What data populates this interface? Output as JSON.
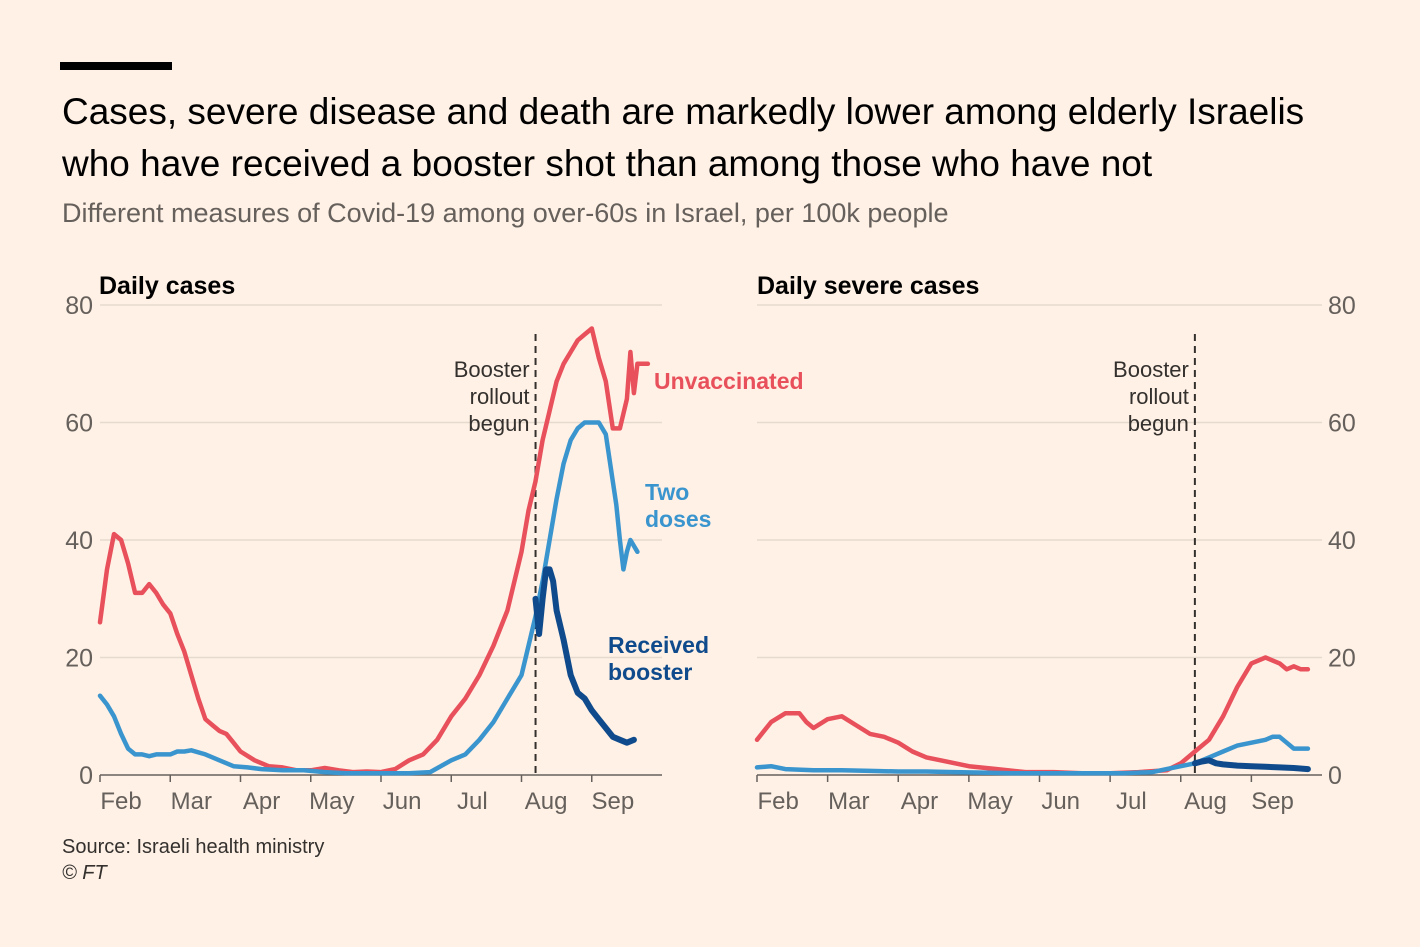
{
  "header": {
    "title": "Cases, severe disease and death are markedly lower among elderly Israelis who have received a booster shot than among those who have not",
    "subtitle": "Different measures of Covid-19 among over-60s in Israel, per 100k people"
  },
  "footer": {
    "source": "Source: Israeli health ministry",
    "copyright": "© FT"
  },
  "colors": {
    "unvaccinated": "#e8505b",
    "two_doses": "#3a95cf",
    "received_booster": "#0f4b8c",
    "grid": "#e6d9ce",
    "axis": "#66605c",
    "booster_line": "#33302e"
  },
  "chart_data": [
    {
      "type": "line",
      "title": "Daily cases",
      "ylim": [
        0,
        80
      ],
      "yticks": [
        "0",
        "20",
        "40",
        "60",
        "80"
      ],
      "x_range": [
        0,
        8
      ],
      "x_ticks": [
        {
          "label": "Feb",
          "x": 0.3
        },
        {
          "label": "Mar",
          "x": 1.3
        },
        {
          "label": "Apr",
          "x": 2.3
        },
        {
          "label": "May",
          "x": 3.3
        },
        {
          "label": "Jun",
          "x": 4.3
        },
        {
          "label": "Jul",
          "x": 5.3
        },
        {
          "label": "Aug",
          "x": 6.35
        },
        {
          "label": "Sep",
          "x": 7.3
        }
      ],
      "booster_x": 6.2,
      "booster_label": [
        "Booster",
        "rollout",
        "begun"
      ],
      "series": [
        {
          "name": "Unvaccinated",
          "label": [
            "Unvaccinated"
          ],
          "color_key": "unvaccinated",
          "x": [
            0,
            0.1,
            0.2,
            0.3,
            0.4,
            0.5,
            0.6,
            0.7,
            0.8,
            0.9,
            1.0,
            1.1,
            1.2,
            1.3,
            1.4,
            1.5,
            1.6,
            1.7,
            1.8,
            1.9,
            2.0,
            2.2,
            2.4,
            2.6,
            2.8,
            3.0,
            3.2,
            3.4,
            3.6,
            3.8,
            4.0,
            4.2,
            4.4,
            4.6,
            4.8,
            5.0,
            5.2,
            5.4,
            5.6,
            5.8,
            6.0,
            6.1,
            6.2,
            6.3,
            6.4,
            6.5,
            6.6,
            6.7,
            6.8,
            6.9,
            7.0,
            7.1,
            7.2,
            7.3,
            7.4,
            7.5,
            7.55,
            7.6,
            7.65,
            7.7,
            7.8
          ],
          "values": [
            26,
            35,
            41,
            40,
            36,
            31,
            31,
            32.5,
            31,
            29,
            27.5,
            24,
            21,
            17,
            13,
            9.5,
            8.5,
            7.5,
            7,
            5.5,
            4,
            2.5,
            1.5,
            1.3,
            0.8,
            0.8,
            1.2,
            0.8,
            0.5,
            0.6,
            0.5,
            1.0,
            2.5,
            3.5,
            6,
            10,
            13,
            17,
            22,
            28,
            38,
            45,
            50,
            57,
            62,
            67,
            70,
            72,
            74,
            75,
            76,
            71,
            67,
            59,
            59,
            64,
            72,
            65,
            70,
            70,
            70
          ]
        },
        {
          "name": "Two doses",
          "label": [
            "Two",
            "doses"
          ],
          "color_key": "two_doses",
          "x": [
            0,
            0.1,
            0.2,
            0.3,
            0.4,
            0.5,
            0.6,
            0.7,
            0.8,
            0.9,
            1.0,
            1.1,
            1.2,
            1.3,
            1.5,
            1.7,
            1.9,
            2.1,
            2.3,
            2.6,
            2.9,
            3.2,
            3.5,
            3.8,
            4.1,
            4.4,
            4.7,
            5.0,
            5.2,
            5.4,
            5.6,
            5.8,
            6.0,
            6.1,
            6.2,
            6.3,
            6.4,
            6.5,
            6.6,
            6.7,
            6.8,
            6.9,
            7.0,
            7.1,
            7.2,
            7.3,
            7.35,
            7.4,
            7.45,
            7.5,
            7.55,
            7.6,
            7.65
          ],
          "values": [
            13.5,
            12,
            10,
            7,
            4.5,
            3.5,
            3.5,
            3.2,
            3.5,
            3.5,
            3.5,
            4,
            4,
            4.2,
            3.5,
            2.5,
            1.5,
            1.3,
            1,
            0.8,
            0.8,
            0.5,
            0.3,
            0.3,
            0.3,
            0.3,
            0.5,
            2.5,
            3.5,
            6,
            9,
            13,
            17,
            22,
            27,
            33,
            40,
            47,
            53,
            57,
            59,
            60,
            60,
            60,
            58,
            50,
            46,
            40,
            35,
            38,
            40,
            39,
            38
          ]
        },
        {
          "name": "Received booster",
          "label": [
            "Received",
            "booster"
          ],
          "color_key": "received_booster",
          "x": [
            6.2,
            6.25,
            6.3,
            6.35,
            6.4,
            6.45,
            6.5,
            6.6,
            6.7,
            6.8,
            6.9,
            7.0,
            7.1,
            7.2,
            7.3,
            7.4,
            7.5,
            7.6
          ],
          "values": [
            30,
            24,
            30,
            35,
            35,
            33,
            28,
            23,
            17,
            14,
            13,
            11,
            9.5,
            8,
            6.5,
            6,
            5.5,
            6
          ]
        }
      ]
    },
    {
      "type": "line",
      "title": "Daily severe cases",
      "ylim": [
        0,
        80
      ],
      "yticks": [
        "0",
        "20",
        "40",
        "60",
        "80"
      ],
      "x_range": [
        0,
        8
      ],
      "x_ticks": [
        {
          "label": "Feb",
          "x": 0.3
        },
        {
          "label": "Mar",
          "x": 1.3
        },
        {
          "label": "Apr",
          "x": 2.3
        },
        {
          "label": "May",
          "x": 3.3
        },
        {
          "label": "Jun",
          "x": 4.3
        },
        {
          "label": "Jul",
          "x": 5.3
        },
        {
          "label": "Aug",
          "x": 6.35
        },
        {
          "label": "Sep",
          "x": 7.3
        }
      ],
      "booster_x": 6.2,
      "booster_label": [
        "Booster",
        "rollout",
        "begun"
      ],
      "series": [
        {
          "name": "Unvaccinated",
          "label": [],
          "color_key": "unvaccinated",
          "x": [
            0,
            0.2,
            0.4,
            0.6,
            0.7,
            0.8,
            1.0,
            1.2,
            1.4,
            1.6,
            1.8,
            2.0,
            2.2,
            2.4,
            2.6,
            3.0,
            3.4,
            3.8,
            4.2,
            4.6,
            5.0,
            5.4,
            5.8,
            6.0,
            6.2,
            6.4,
            6.6,
            6.8,
            7.0,
            7.2,
            7.4,
            7.5,
            7.6,
            7.7,
            7.8
          ],
          "values": [
            6,
            9,
            10.5,
            10.5,
            9,
            8,
            9.5,
            10,
            8.5,
            7,
            6.5,
            5.5,
            4,
            3,
            2.5,
            1.5,
            1,
            0.5,
            0.5,
            0.3,
            0.3,
            0.5,
            0.8,
            2,
            4,
            6,
            10,
            15,
            19,
            20,
            19,
            18,
            18.5,
            18,
            18
          ]
        },
        {
          "name": "Two doses",
          "label": [],
          "color_key": "two_doses",
          "x": [
            0,
            0.2,
            0.4,
            0.8,
            1.2,
            1.6,
            2.0,
            2.4,
            2.8,
            3.2,
            3.6,
            4.0,
            4.4,
            4.8,
            5.2,
            5.6,
            5.8,
            6.0,
            6.2,
            6.4,
            6.6,
            6.8,
            7.0,
            7.2,
            7.3,
            7.4,
            7.5,
            7.6,
            7.7,
            7.8
          ],
          "values": [
            1.3,
            1.5,
            1,
            0.8,
            0.8,
            0.7,
            0.6,
            0.6,
            0.5,
            0.4,
            0.3,
            0.3,
            0.3,
            0.3,
            0.3,
            0.5,
            1,
            1.5,
            2,
            3,
            4,
            5,
            5.5,
            6,
            6.5,
            6.5,
            5.5,
            4.5,
            4.5,
            4.5
          ]
        },
        {
          "name": "Received booster",
          "label": [],
          "color_key": "received_booster",
          "x": [
            6.2,
            6.3,
            6.4,
            6.5,
            6.6,
            6.8,
            7.0,
            7.2,
            7.4,
            7.6,
            7.8
          ],
          "values": [
            2,
            2.3,
            2.5,
            2,
            1.8,
            1.6,
            1.5,
            1.4,
            1.3,
            1.2,
            1
          ]
        }
      ]
    }
  ]
}
